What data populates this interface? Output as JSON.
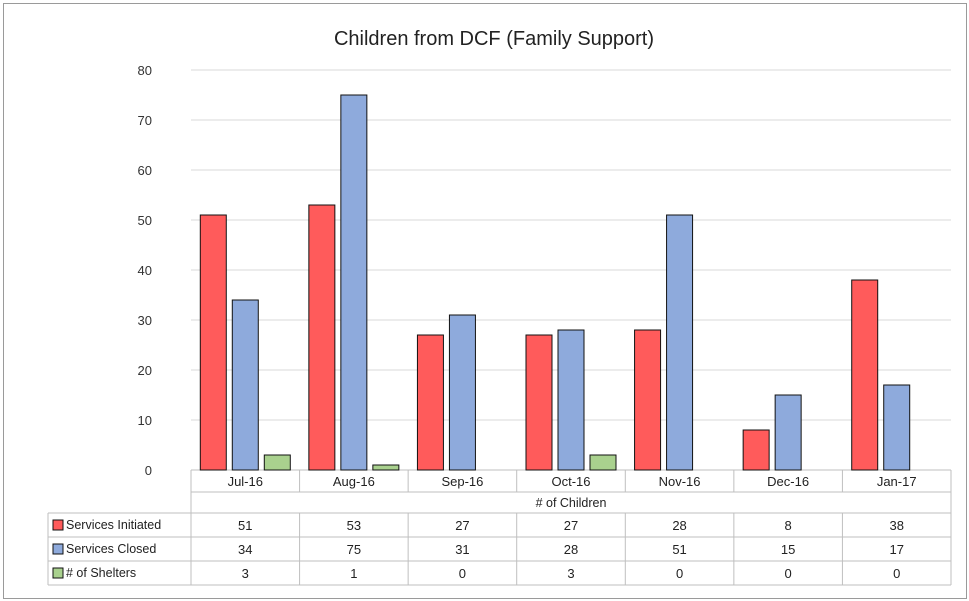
{
  "chart_data": {
    "type": "bar",
    "title": "Children from DCF (Family Support)",
    "xlabel": "# of Children",
    "ylabel": "",
    "ylim": [
      0,
      80
    ],
    "yticks": [
      0,
      10,
      20,
      30,
      40,
      50,
      60,
      70,
      80
    ],
    "grid": true,
    "legend": "data-table-left",
    "categories": [
      "Jul-16",
      "Aug-16",
      "Sep-16",
      "Oct-16",
      "Nov-16",
      "Dec-16",
      "Jan-17"
    ],
    "series": [
      {
        "name": "Services Initiated",
        "color": "#ff5b5b",
        "values": [
          51,
          53,
          27,
          27,
          28,
          8,
          38
        ]
      },
      {
        "name": "Services Closed",
        "color": "#8eaadc",
        "values": [
          34,
          75,
          31,
          28,
          51,
          15,
          17
        ]
      },
      {
        "name": "# of Shelters",
        "color": "#a9d18e",
        "values": [
          3,
          1,
          0,
          3,
          0,
          0,
          0
        ]
      }
    ]
  }
}
